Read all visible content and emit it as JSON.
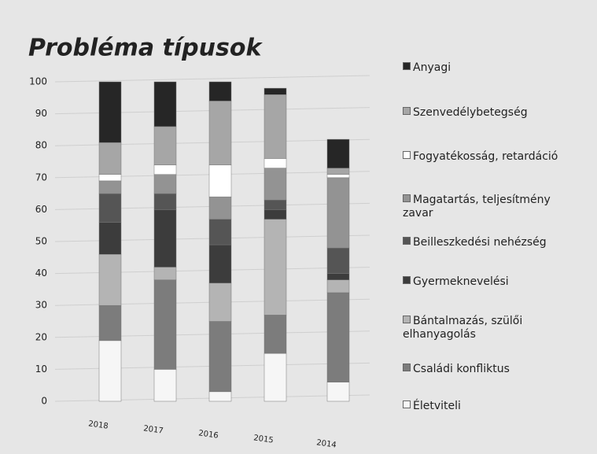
{
  "chart_data": {
    "type": "stacked_bar",
    "title": "Probléma típusok",
    "categories": [
      "2018",
      "2017",
      "2016",
      "2015",
      "2014"
    ],
    "series": [
      {
        "name": "Életviteli",
        "color": "#f6f6f6",
        "values": [
          19,
          10,
          3,
          15,
          6
        ]
      },
      {
        "name": "Családi konfliktus",
        "color": "#7c7c7c",
        "values": [
          11,
          28,
          22,
          12,
          28
        ]
      },
      {
        "name": "Bántalmazás, szülői elhanyagolás",
        "color": "#b4b4b4",
        "values": [
          16,
          4,
          12,
          30,
          4
        ]
      },
      {
        "name": "Gyermeknevelési",
        "color": "#3c3c3c",
        "values": [
          10,
          18,
          12,
          3,
          2
        ]
      },
      {
        "name": "Beilleszkedési nehézség",
        "color": "#555555",
        "values": [
          9,
          5,
          8,
          3,
          8
        ]
      },
      {
        "name": "Magatartás, teljesítmény zavar",
        "color": "#939393",
        "values": [
          4,
          6,
          7,
          10,
          22
        ]
      },
      {
        "name": "Fogyatékosság, retardáció",
        "color": "#ffffff",
        "values": [
          2,
          3,
          10,
          3,
          1
        ]
      },
      {
        "name": "Szenvedélybetegség",
        "color": "#a6a6a6",
        "values": [
          10,
          12,
          20,
          20,
          2
        ]
      },
      {
        "name": "Anyagi",
        "color": "#262626",
        "values": [
          19,
          14,
          6,
          2,
          9
        ]
      }
    ],
    "ylim": [
      0,
      100
    ],
    "yticks": [
      0,
      10,
      20,
      30,
      40,
      50,
      60,
      70,
      80,
      90,
      100
    ],
    "grid": true
  }
}
